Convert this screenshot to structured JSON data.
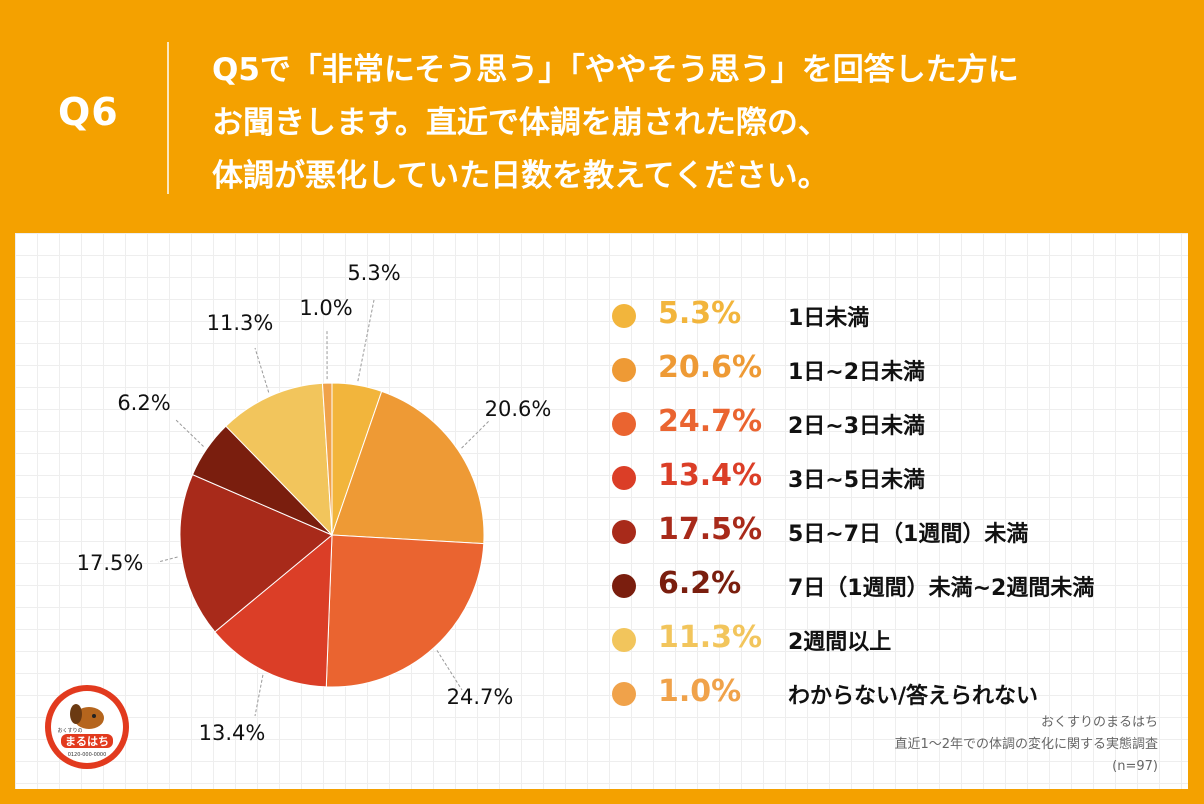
{
  "question": {
    "number": "Q6",
    "lines": [
      "Q5で「非常にそう思う」「ややそう思う」を回答した方に",
      "お聞きします。直近で体調を崩された際の、",
      "体調が悪化していた日数を教えてください。"
    ]
  },
  "chart_data": {
    "type": "pie",
    "title": "体調が悪化していた日数",
    "slices": [
      {
        "label": "1日未満",
        "value": 5.3,
        "display": "5.3%",
        "color": "#F2B53C"
      },
      {
        "label": "1日~2日未満",
        "value": 20.6,
        "display": "20.6%",
        "color": "#EE9A35"
      },
      {
        "label": "2日~3日未満",
        "value": 24.7,
        "display": "24.7%",
        "color": "#EA6430"
      },
      {
        "label": "3日~5日未満",
        "value": 13.4,
        "display": "13.4%",
        "color": "#DB3E27"
      },
      {
        "label": "5日~7日（1週間）未満",
        "value": 17.5,
        "display": "17.5%",
        "color": "#A82A1A"
      },
      {
        "label": "7日（1週間）未満~2週間未満",
        "value": 6.2,
        "display": "6.2%",
        "color": "#7A1E0E"
      },
      {
        "label": "2週間以上",
        "value": 11.3,
        "display": "11.3%",
        "color": "#F2C55C"
      },
      {
        "label": "わからない/答えられない",
        "value": 1.0,
        "display": "1.0%",
        "color": "#F0A24A"
      }
    ]
  },
  "source": {
    "line1": "おくすりのまるはち",
    "line2": "直近1～2年での体調の変化に関する実態調査",
    "line3": "(n=97)"
  },
  "logo": {
    "text": "まるはち",
    "subtext": "おくすりの",
    "phone": "0120-000-0000"
  }
}
